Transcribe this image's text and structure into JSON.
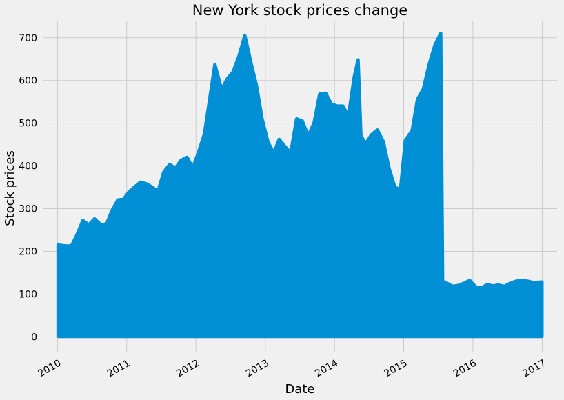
{
  "chart_data": {
    "type": "area",
    "title": "New York stock prices change",
    "xlabel": "Date",
    "ylabel": "Stock prices",
    "x_ticks": [
      "2010",
      "2011",
      "2012",
      "2013",
      "2014",
      "2015",
      "2016",
      "2017"
    ],
    "y_ticks": [
      0,
      100,
      200,
      300,
      400,
      500,
      600,
      700
    ],
    "xlim": [
      "2009-10-15",
      "2017-03-20"
    ],
    "ylim": [
      -35,
      740
    ],
    "grid": true,
    "series": [
      {
        "color": "#008fd5",
        "lower": 1,
        "x": [
          "2010-01-04",
          "2010-02-01",
          "2010-03-15",
          "2010-04-15",
          "2010-05-15",
          "2010-06-15",
          "2010-07-15",
          "2010-08-15",
          "2010-09-15",
          "2010-10-15",
          "2010-11-15",
          "2010-12-15",
          "2011-01-15",
          "2011-02-15",
          "2011-03-15",
          "2011-04-15",
          "2011-05-15",
          "2011-06-15",
          "2011-07-15",
          "2011-08-15",
          "2011-09-15",
          "2011-10-15",
          "2011-11-15",
          "2011-12-15",
          "2012-01-15",
          "2012-02-15",
          "2012-03-15",
          "2012-04-10",
          "2012-05-15",
          "2012-06-15",
          "2012-07-15",
          "2012-08-15",
          "2012-09-15",
          "2012-10-15",
          "2012-11-15",
          "2012-12-15",
          "2013-01-15",
          "2013-02-15",
          "2013-03-15",
          "2013-04-15",
          "2013-05-15",
          "2013-06-15",
          "2013-07-15",
          "2013-08-15",
          "2013-09-15",
          "2013-10-15",
          "2013-11-15",
          "2013-12-15",
          "2014-01-15",
          "2014-02-15",
          "2014-03-15",
          "2014-04-15",
          "2014-05-05",
          "2014-05-20",
          "2014-06-15",
          "2014-07-15",
          "2014-08-15",
          "2014-09-15",
          "2014-10-15",
          "2014-11-15",
          "2014-12-15",
          "2015-01-10",
          "2015-02-15",
          "2015-03-15",
          "2015-04-15",
          "2015-05-15",
          "2015-06-15",
          "2015-07-15",
          "2015-07-25",
          "2015-08-10",
          "2015-09-15",
          "2015-10-15",
          "2015-11-15",
          "2015-12-15",
          "2016-01-15",
          "2016-02-15",
          "2016-03-15",
          "2016-04-15",
          "2016-05-15",
          "2016-06-15",
          "2016-07-15",
          "2016-08-15",
          "2016-09-15",
          "2016-10-15",
          "2016-11-15",
          "2016-12-30"
        ],
        "upper": [
          215,
          213,
          212,
          240,
          272,
          262,
          276,
          263,
          262,
          295,
          320,
          322,
          340,
          352,
          362,
          358,
          350,
          340,
          385,
          403,
          395,
          413,
          420,
          395,
          432,
          475,
          560,
          637,
          578,
          604,
          620,
          657,
          705,
          645,
          588,
          510,
          455,
          430,
          462,
          445,
          430,
          510,
          505,
          470,
          500,
          568,
          570,
          545,
          540,
          540,
          515,
          608,
          648,
          470,
          452,
          473,
          484,
          457,
          395,
          350,
          344,
          460,
          483,
          556,
          580,
          637,
          683,
          710,
          130,
          127,
          118,
          120,
          125,
          132,
          117,
          114,
          122,
          119,
          121,
          118,
          125,
          130,
          132,
          130,
          127,
          128
        ]
      }
    ]
  }
}
